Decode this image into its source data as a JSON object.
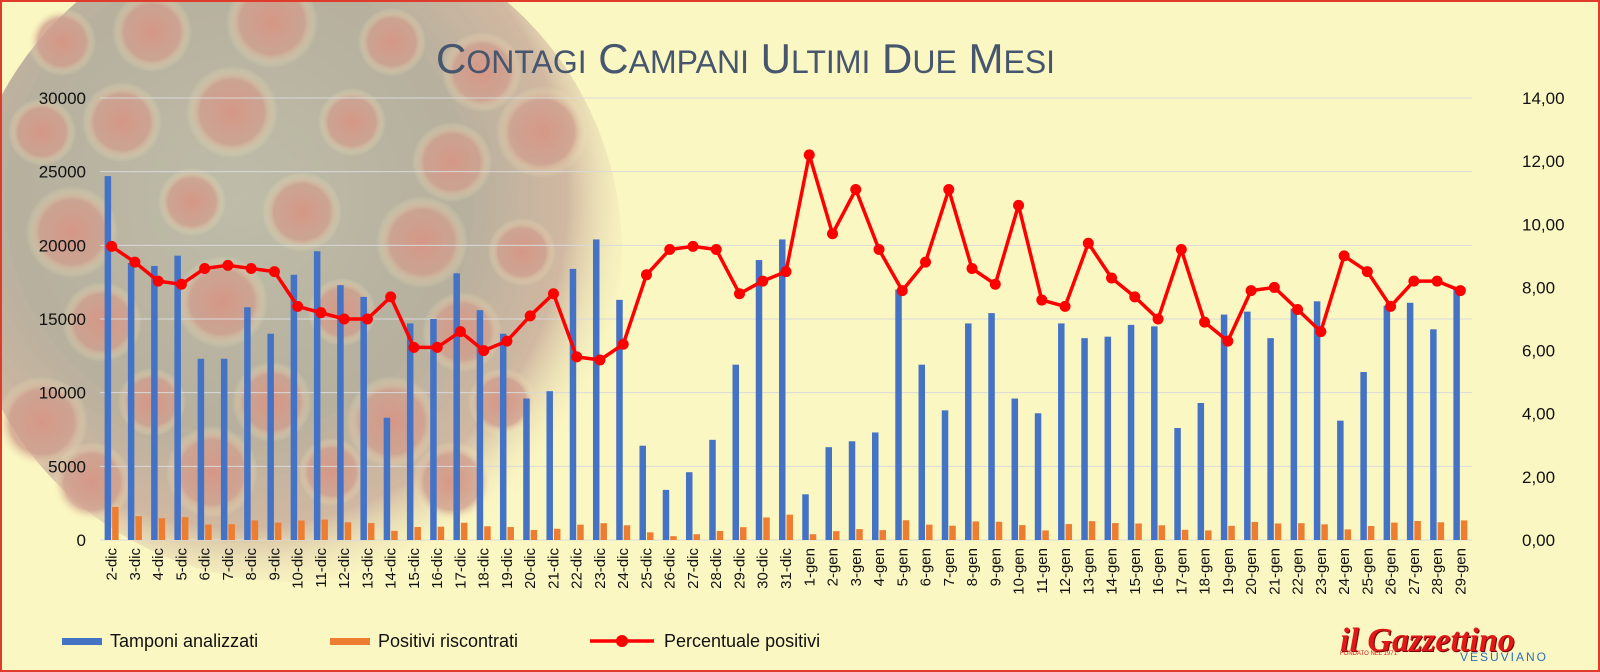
{
  "logo": {
    "main": "il Gazzettino",
    "sub": "VESUVIANO",
    "since": "FONDATO NEL 1971"
  },
  "colors": {
    "tamponi": "#4472c4",
    "positivi": "#ed7d31",
    "percentuale": "#ff0000",
    "background": "#fbf7c2",
    "border": "#e03a2a",
    "title": "#46566e"
  },
  "chart_data": {
    "type": "bar",
    "title": "Contagi Campani ultimi due mesi",
    "categories": [
      "2-dic",
      "3-dic",
      "4-dic",
      "5-dic",
      "6-dic",
      "7-dic",
      "8-dic",
      "9-dic",
      "10-dic",
      "11-dic",
      "12-dic",
      "13-dic",
      "14-dic",
      "15-dic",
      "16-dic",
      "17-dic",
      "18-dic",
      "19-dic",
      "20-dic",
      "21-dic",
      "22-dic",
      "23-dic",
      "24-dic",
      "25-dic",
      "26-dic",
      "27-dic",
      "28-dic",
      "29-dic",
      "30-dic",
      "31-dic",
      "1-gen",
      "2-gen",
      "3-gen",
      "4-gen",
      "5-gen",
      "6-gen",
      "7-gen",
      "8-gen",
      "9-gen",
      "10-gen",
      "11-gen",
      "12-gen",
      "13-gen",
      "14-gen",
      "15-gen",
      "16-gen",
      "17-gen",
      "18-gen",
      "19-gen",
      "20-gen",
      "21-gen",
      "22-gen",
      "23-gen",
      "24-gen",
      "25-gen",
      "26-gen",
      "27-gen",
      "28-gen",
      "29-gen"
    ],
    "series": [
      {
        "name": "Tamponi analizzati",
        "type": "bar",
        "axis": "left",
        "color": "#4472c4",
        "values": [
          24700,
          18800,
          18600,
          19300,
          12300,
          12300,
          15800,
          14000,
          18000,
          19600,
          17300,
          16500,
          8300,
          14700,
          15000,
          18100,
          15600,
          14000,
          9600,
          10100,
          18400,
          20400,
          16300,
          6400,
          3400,
          4600,
          6800,
          11900,
          19000,
          20400,
          3100,
          6300,
          6700,
          7300,
          17000,
          11900,
          8800,
          14700,
          15400,
          9600,
          8600,
          14700,
          13700,
          13800,
          14600,
          14500,
          7600,
          9300,
          15300,
          15500,
          13700,
          15700,
          16200,
          8100,
          11400,
          15900,
          16100,
          14300,
          17200
        ]
      },
      {
        "name": "Positivi riscontrati",
        "type": "bar",
        "axis": "left",
        "color": "#ed7d31",
        "values": [
          2250,
          1620,
          1480,
          1550,
          1050,
          1070,
          1330,
          1180,
          1320,
          1390,
          1200,
          1150,
          620,
          880,
          900,
          1170,
          930,
          880,
          680,
          760,
          1040,
          1140,
          1000,
          520,
          260,
          390,
          610,
          870,
          1530,
          1720,
          390,
          600,
          740,
          670,
          1340,
          1040,
          970,
          1260,
          1240,
          1010,
          650,
          1080,
          1280,
          1150,
          1120,
          1000,
          690,
          650,
          960,
          1220,
          1120,
          1140,
          1060,
          720,
          950,
          1180,
          1290,
          1200,
          1330
        ]
      },
      {
        "name": "Percentuale positivi",
        "type": "line",
        "axis": "right",
        "color": "#ff0000",
        "values": [
          9.3,
          8.8,
          8.2,
          8.1,
          8.6,
          8.7,
          8.6,
          8.5,
          7.4,
          7.2,
          7.0,
          7.0,
          7.7,
          6.1,
          6.1,
          6.6,
          6.0,
          6.3,
          7.1,
          7.8,
          5.8,
          5.7,
          6.2,
          8.4,
          9.2,
          9.3,
          9.2,
          7.8,
          8.2,
          8.5,
          12.2,
          9.7,
          11.1,
          9.2,
          7.9,
          8.8,
          11.1,
          8.6,
          8.1,
          10.6,
          7.6,
          7.4,
          9.4,
          8.3,
          7.7,
          7.0,
          9.2,
          6.9,
          6.3,
          7.9,
          8.0,
          7.3,
          6.6,
          9.0,
          8.5,
          7.4,
          8.2,
          8.2,
          7.9
        ]
      }
    ],
    "yleft": {
      "lim": [
        0,
        30000
      ],
      "ticks": [
        "0",
        "5000",
        "10000",
        "15000",
        "20000",
        "25000",
        "30000"
      ]
    },
    "yright": {
      "lim": [
        0,
        14
      ],
      "ticks": [
        "0,00",
        "2,00",
        "4,00",
        "6,00",
        "8,00",
        "10,00",
        "12,00",
        "14,00"
      ]
    },
    "grid": true,
    "legend_position": "bottom-left"
  }
}
